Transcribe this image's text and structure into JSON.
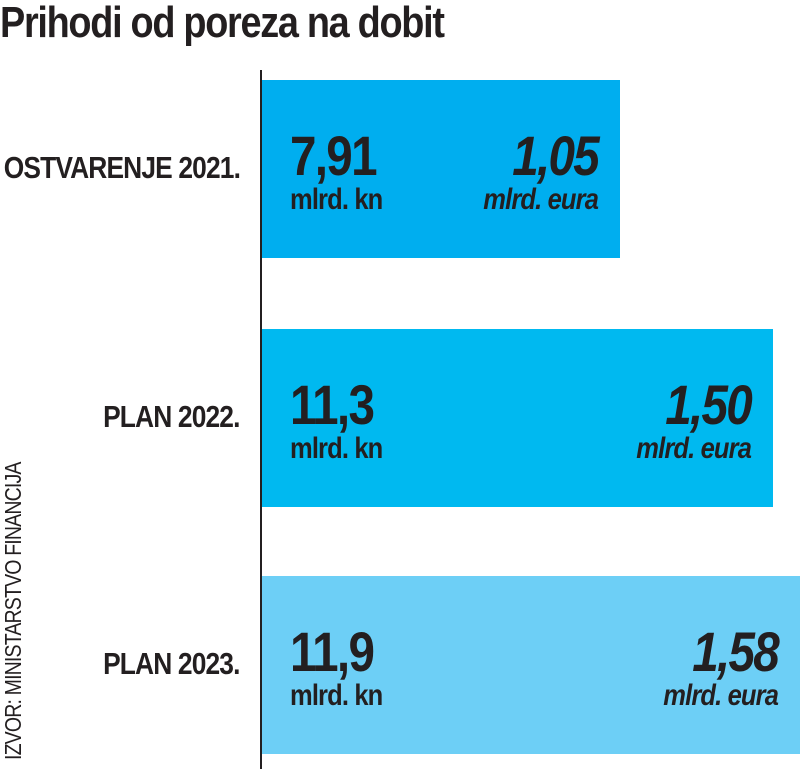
{
  "chart_data": {
    "type": "bar",
    "orientation": "horizontal",
    "title": "Prihodi od poreza na dobit",
    "categories": [
      "OSTVARENJE 2021.",
      "PLAN 2022.",
      "PLAN 2023."
    ],
    "series": [
      {
        "name": "mlrd. kn",
        "values": [
          7.91,
          11.3,
          11.9
        ],
        "labels": [
          "7,91",
          "11,3",
          "11,9"
        ]
      },
      {
        "name": "mlrd. eura",
        "values": [
          1.05,
          1.5,
          1.58
        ],
        "labels": [
          "1,05",
          "1,50",
          "1,58"
        ]
      }
    ],
    "unit_kn": "mlrd. kn",
    "unit_eur": "mlrd. eura",
    "colors": [
      "#00aeef",
      "#00b9f0",
      "#6dcff6"
    ],
    "xlim": [
      0,
      11.9
    ],
    "grid": false,
    "source": "IZVOR: MINISTARSTVO FINANCIJA"
  }
}
